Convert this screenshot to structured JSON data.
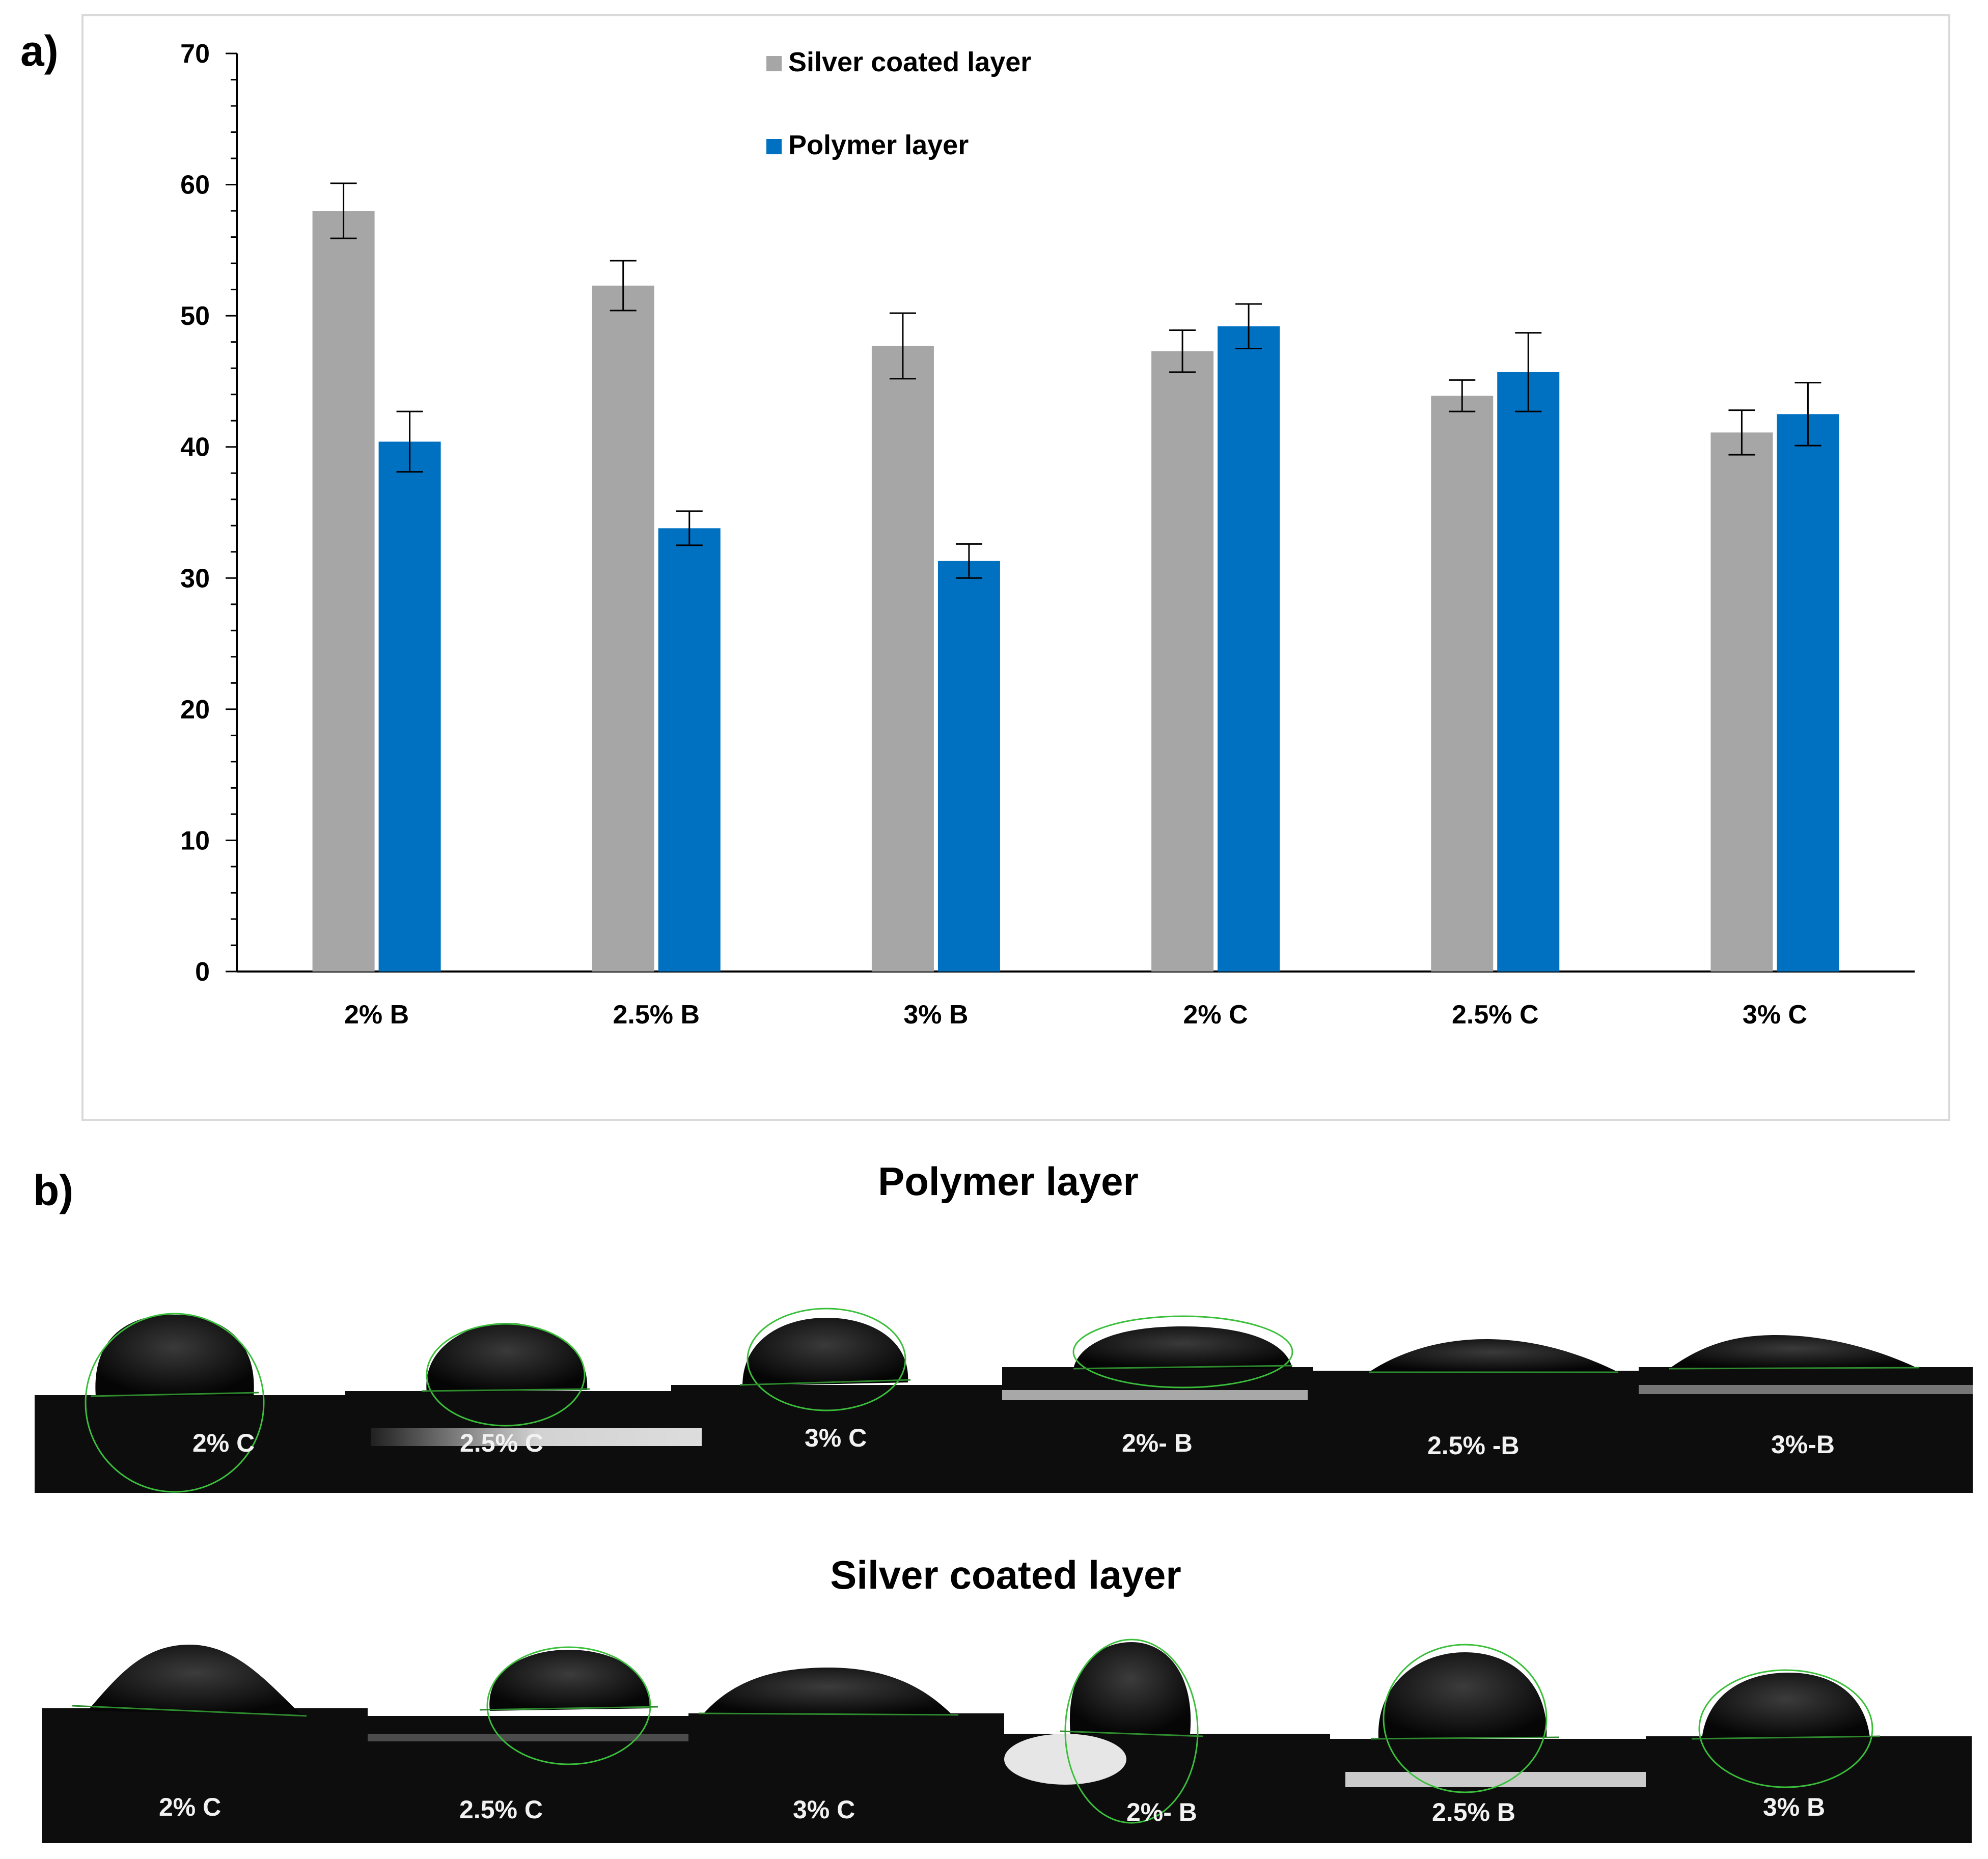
{
  "panel_a_label": "a)",
  "panel_b_label": "b)",
  "chart_data": {
    "type": "bar",
    "categories": [
      "2% B",
      "2.5% B",
      "3% B",
      "2% C",
      "2.5% C",
      "3% C"
    ],
    "series": [
      {
        "name": "Silver coated layer",
        "color": "#a6a6a6",
        "values": [
          58.0,
          52.3,
          47.7,
          47.3,
          43.9,
          41.1
        ],
        "errors": [
          2.1,
          1.9,
          2.5,
          1.6,
          1.2,
          1.7
        ]
      },
      {
        "name": "Polymer layer",
        "color": "#0070c0",
        "values": [
          40.4,
          33.8,
          31.3,
          49.2,
          45.7,
          42.5
        ],
        "errors": [
          2.3,
          1.3,
          1.3,
          1.7,
          3.0,
          2.4
        ]
      }
    ],
    "ylim": [
      0,
      70
    ],
    "yticks": [
      0,
      10,
      20,
      30,
      40,
      50,
      60,
      70
    ],
    "title": "",
    "xlabel": "",
    "ylabel": "",
    "legend_position": "top-center",
    "grid": false
  },
  "photos": {
    "polymer_title": "Polymer layer",
    "silver_title": "Silver coated layer",
    "polymer_labels": [
      "2% C",
      "2.5% C",
      "3% C",
      "2%- B",
      "2.5% -B",
      "3%-B"
    ],
    "silver_labels": [
      "2% C",
      "2.5% C",
      "3% C",
      "2%- B",
      "2.5% B",
      "3% B"
    ]
  }
}
